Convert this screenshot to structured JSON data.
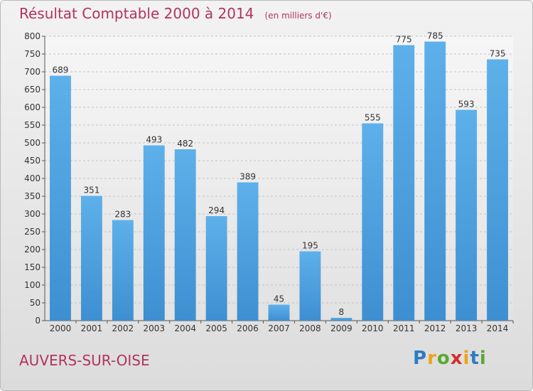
{
  "chart_data": {
    "type": "bar",
    "title": "Résultat Comptable 2000 à 2014",
    "subtitle": "(en milliers d'€)",
    "categories": [
      "2000",
      "2001",
      "2002",
      "2003",
      "2004",
      "2005",
      "2006",
      "2007",
      "2008",
      "2009",
      "2010",
      "2011",
      "2012",
      "2013",
      "2014"
    ],
    "values": [
      689,
      351,
      283,
      493,
      482,
      294,
      389,
      45,
      195,
      8,
      555,
      775,
      785,
      593,
      735
    ],
    "ylim": [
      0,
      800
    ],
    "yticks": [
      0,
      50,
      100,
      150,
      200,
      250,
      300,
      350,
      400,
      450,
      500,
      550,
      600,
      650,
      700,
      750,
      800
    ],
    "grid": true,
    "bar_color": "#3d8fd1",
    "title_color": "#b2335e"
  },
  "location": "AUVERS-SUR-OISE",
  "logo": {
    "letters": [
      "P",
      "r",
      "o",
      "x",
      "i",
      "t",
      "i"
    ],
    "colors": [
      "#2d7cc1",
      "#f0a21c",
      "#5aa832",
      "#d0302f",
      "#f0a21c",
      "#2d7cc1",
      "#5aa832"
    ]
  }
}
